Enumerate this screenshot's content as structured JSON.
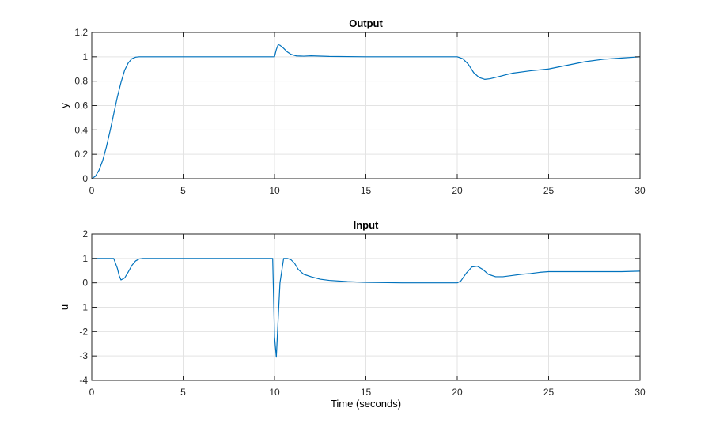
{
  "figure": {
    "xlabel": "Time (seconds)"
  },
  "colors": {
    "line": "#0072BD",
    "grid": "#e3e3e3",
    "axis": "#262626"
  },
  "chart_data": [
    {
      "type": "line",
      "title": "Output",
      "xlabel": "",
      "ylabel": "y",
      "xlim": [
        0,
        30
      ],
      "ylim": [
        0,
        1.2
      ],
      "xticks": [
        0,
        5,
        10,
        15,
        20,
        25,
        30
      ],
      "xtick_labels": [
        "0",
        "5",
        "10",
        "15",
        "20",
        "25",
        "30"
      ],
      "yticks": [
        0,
        0.2,
        0.4,
        0.6,
        0.8,
        1,
        1.2
      ],
      "ytick_labels": [
        "0",
        "0.2",
        "0.4",
        "0.6",
        "0.8",
        "1",
        "1.2"
      ],
      "grid": true,
      "series": [
        {
          "x": [
            0,
            0.2,
            0.4,
            0.6,
            0.8,
            1.0,
            1.2,
            1.4,
            1.6,
            1.8,
            2.0,
            2.2,
            2.4,
            2.6,
            3.0,
            5,
            8,
            10.0,
            10.1,
            10.2,
            10.3,
            10.5,
            10.7,
            10.9,
            11.2,
            11.6,
            12,
            13,
            15,
            17,
            20.0,
            20.3,
            20.6,
            20.9,
            21.2,
            21.5,
            21.8,
            22.2,
            22.6,
            23,
            24,
            25,
            26,
            27,
            28,
            29,
            30
          ],
          "y": [
            0,
            0.02,
            0.07,
            0.15,
            0.26,
            0.39,
            0.53,
            0.67,
            0.79,
            0.89,
            0.95,
            0.985,
            0.997,
            1.0,
            1.0,
            1.0,
            1.0,
            1.0,
            1.06,
            1.1,
            1.095,
            1.07,
            1.04,
            1.02,
            1.007,
            1.005,
            1.008,
            1.003,
            1.0,
            1.0,
            1.0,
            0.985,
            0.94,
            0.87,
            0.83,
            0.815,
            0.82,
            0.835,
            0.85,
            0.865,
            0.885,
            0.9,
            0.93,
            0.96,
            0.98,
            0.99,
            1.0
          ]
        }
      ]
    },
    {
      "type": "line",
      "title": "Input",
      "xlabel": "Time (seconds)",
      "ylabel": "u",
      "xlim": [
        0,
        30
      ],
      "ylim": [
        -4,
        2
      ],
      "xticks": [
        0,
        5,
        10,
        15,
        20,
        25,
        30
      ],
      "xtick_labels": [
        "0",
        "5",
        "10",
        "15",
        "20",
        "25",
        "30"
      ],
      "yticks": [
        -4,
        -3,
        -2,
        -1,
        0,
        1,
        2
      ],
      "ytick_labels": [
        "-4",
        "-3",
        "-2",
        "-1",
        "0",
        "1",
        "2"
      ],
      "grid": true,
      "series": [
        {
          "x": [
            0,
            1.0,
            1.2,
            1.4,
            1.5,
            1.6,
            1.8,
            2.0,
            2.2,
            2.4,
            2.6,
            2.8,
            3.0,
            5,
            8,
            9.9,
            10.0,
            10.1,
            10.2,
            10.3,
            10.5,
            10.7,
            10.9,
            11.1,
            11.3,
            11.6,
            12,
            12.5,
            13,
            14,
            15,
            17,
            20.0,
            20.2,
            20.5,
            20.8,
            21.1,
            21.4,
            21.7,
            22.1,
            22.5,
            23,
            23.5,
            24,
            24.5,
            25,
            27,
            29,
            30
          ],
          "y": [
            1,
            1,
            1,
            0.6,
            0.3,
            0.12,
            0.2,
            0.45,
            0.72,
            0.9,
            0.98,
            1.0,
            1.0,
            1.0,
            1.0,
            1.0,
            -2.2,
            -3.05,
            -1.5,
            0.0,
            1.0,
            1.0,
            0.95,
            0.8,
            0.55,
            0.35,
            0.25,
            0.15,
            0.1,
            0.05,
            0.02,
            0.0,
            0.0,
            0.08,
            0.4,
            0.65,
            0.68,
            0.55,
            0.35,
            0.25,
            0.25,
            0.3,
            0.35,
            0.38,
            0.43,
            0.46,
            0.46,
            0.46,
            0.48
          ]
        }
      ]
    }
  ]
}
